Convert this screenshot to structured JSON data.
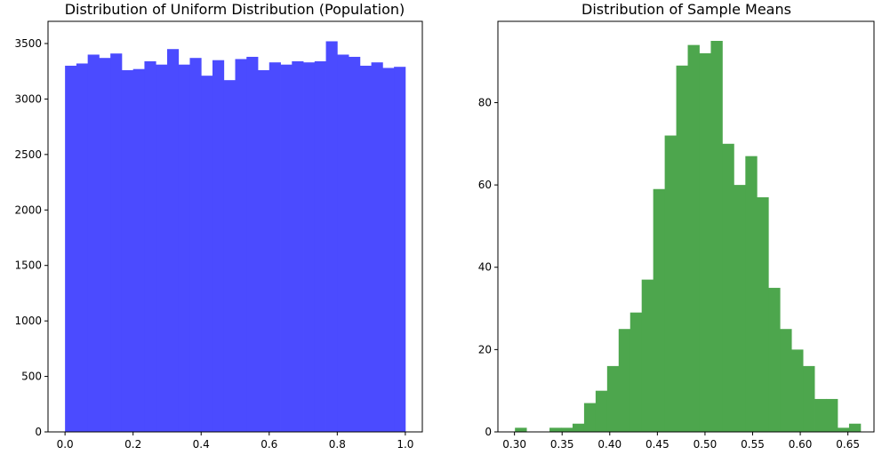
{
  "chart_data": [
    {
      "type": "bar",
      "title": "Distribution of Uniform Distribution (Population)",
      "xlabel": "",
      "ylabel": "",
      "xlim": [
        -0.05,
        1.05
      ],
      "ylim": [
        0,
        3700
      ],
      "xticks": [
        0.0,
        0.2,
        0.4,
        0.6,
        0.8,
        1.0
      ],
      "xtick_labels": [
        "0.0",
        "0.2",
        "0.4",
        "0.6",
        "0.8",
        "1.0"
      ],
      "yticks": [
        0,
        500,
        1000,
        1500,
        2000,
        2500,
        3000,
        3500
      ],
      "ytick_labels": [
        "0",
        "500",
        "1000",
        "1500",
        "2000",
        "2500",
        "3000",
        "3500"
      ],
      "bin_start": 0.0,
      "bin_end": 1.0,
      "values": [
        3300,
        3320,
        3400,
        3370,
        3410,
        3260,
        3270,
        3340,
        3310,
        3450,
        3310,
        3370,
        3210,
        3350,
        3170,
        3360,
        3380,
        3260,
        3330,
        3310,
        3340,
        3330,
        3340,
        3520,
        3400,
        3380,
        3300,
        3330,
        3280,
        3290
      ],
      "color": "#4b4bff",
      "grid": false
    },
    {
      "type": "bar",
      "title": "Distribution of Sample Means",
      "xlabel": "",
      "ylabel": "",
      "xlim": [
        0.2826,
        0.6774
      ],
      "ylim": [
        0,
        99.75
      ],
      "xticks": [
        0.3,
        0.35,
        0.4,
        0.45,
        0.5,
        0.55,
        0.6,
        0.65
      ],
      "xtick_labels": [
        "0.30",
        "0.35",
        "0.40",
        "0.45",
        "0.50",
        "0.55",
        "0.60",
        "0.65"
      ],
      "yticks": [
        0,
        20,
        40,
        60,
        80
      ],
      "ytick_labels": [
        "0",
        "20",
        "40",
        "60",
        "80"
      ],
      "bin_start": 0.3005,
      "bin_end": 0.6633,
      "values": [
        1,
        0,
        0,
        1,
        1,
        2,
        7,
        10,
        16,
        25,
        29,
        37,
        59,
        72,
        89,
        94,
        92,
        95,
        70,
        60,
        67,
        57,
        35,
        25,
        20,
        16,
        8,
        8,
        1,
        2
      ],
      "color": "#4da64d",
      "grid": false
    }
  ]
}
